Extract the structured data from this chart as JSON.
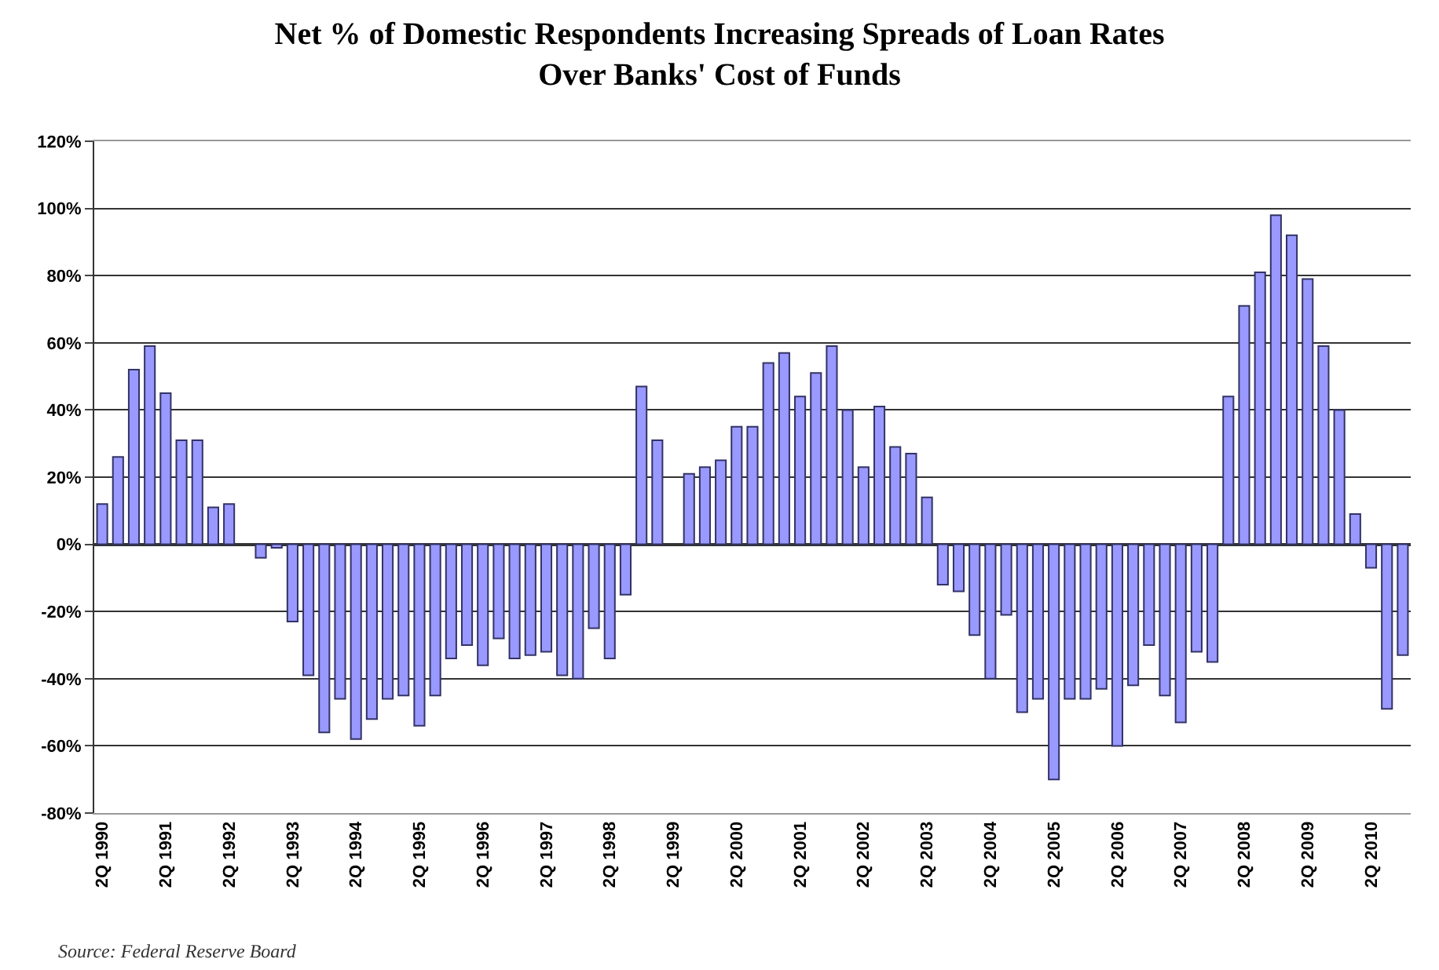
{
  "chart_data": {
    "type": "bar",
    "title": "Net % of Domestic Respondents Increasing Spreads of Loan Rates\nOver Banks' Cost of Funds",
    "categories": [
      "2Q 1990",
      null,
      null,
      null,
      "2Q 1991",
      null,
      null,
      null,
      "2Q 1992",
      null,
      null,
      null,
      "2Q 1993",
      null,
      null,
      null,
      "2Q 1994",
      null,
      null,
      null,
      "2Q 1995",
      null,
      null,
      null,
      "2Q 1996",
      null,
      null,
      null,
      "2Q 1997",
      null,
      null,
      null,
      "2Q 1998",
      null,
      null,
      null,
      "2Q 1999",
      null,
      null,
      null,
      "2Q 2000",
      null,
      null,
      null,
      "2Q 2001",
      null,
      null,
      null,
      "2Q 2002",
      null,
      null,
      null,
      "2Q 2003",
      null,
      null,
      null,
      "2Q 2004",
      null,
      null,
      null,
      "2Q 2005",
      null,
      null,
      null,
      "2Q 2006",
      null,
      null,
      null,
      "2Q 2007",
      null,
      null,
      null,
      "2Q 2008",
      null,
      null,
      null,
      "2Q 2009",
      null,
      null,
      null,
      "2Q 2010",
      null,
      null
    ],
    "values": [
      12,
      26,
      52,
      59,
      45,
      31,
      31,
      11,
      12,
      null,
      -4,
      -1,
      -23,
      -39,
      -56,
      -46,
      -58,
      -52,
      -46,
      -45,
      -54,
      -45,
      -34,
      -30,
      -36,
      -28,
      -34,
      -33,
      -32,
      -39,
      -40,
      -25,
      -34,
      -15,
      47,
      31,
      null,
      21,
      23,
      25,
      35,
      35,
      54,
      57,
      44,
      51,
      59,
      40,
      23,
      41,
      29,
      27,
      14,
      -12,
      -14,
      -27,
      -40,
      -21,
      -50,
      -46,
      -70,
      -46,
      -46,
      -43,
      -60,
      -42,
      -30,
      -45,
      -53,
      -32,
      -35,
      44,
      71,
      81,
      98,
      92,
      79,
      59,
      40,
      9,
      -7,
      -49,
      -33
    ],
    "color": "#9999ff",
    "ylim": [
      -80,
      120
    ],
    "yticks": [
      {
        "value": -80,
        "label": "-80%"
      },
      {
        "value": -60,
        "label": "-60%"
      },
      {
        "value": -40,
        "label": "-40%"
      },
      {
        "value": -20,
        "label": "-20%"
      },
      {
        "value": 0,
        "label": "0%"
      },
      {
        "value": 20,
        "label": "20%"
      },
      {
        "value": 40,
        "label": "40%"
      },
      {
        "value": 60,
        "label": "60%"
      },
      {
        "value": 80,
        "label": "80%"
      },
      {
        "value": 100,
        "label": "100%"
      },
      {
        "value": 120,
        "label": "120%"
      }
    ],
    "grid": "y",
    "annotations": [
      "Source: Federal Reserve Board"
    ]
  }
}
